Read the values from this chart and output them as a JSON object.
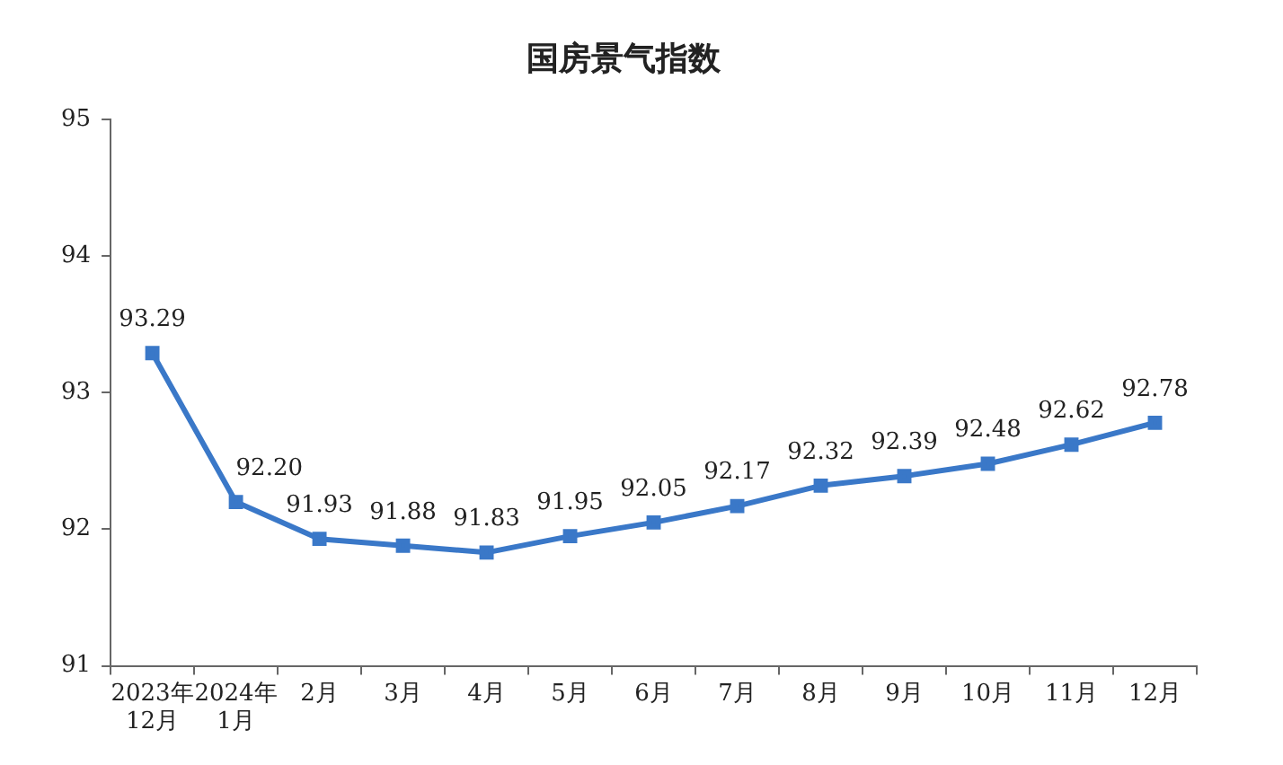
{
  "chart_data": {
    "type": "line",
    "title": "国房景气指数",
    "categories": [
      "2023年\n12月",
      "2024年\n1月",
      "2月",
      "3月",
      "4月",
      "5月",
      "6月",
      "7月",
      "8月",
      "9月",
      "10月",
      "11月",
      "12月"
    ],
    "series": [
      {
        "color": "#3a78c8",
        "values": [
          93.29,
          92.2,
          91.93,
          91.88,
          91.83,
          91.95,
          92.05,
          92.17,
          92.32,
          92.39,
          92.48,
          92.62,
          92.78
        ],
        "value_labels": [
          "93.29",
          "92.20",
          "91.93",
          "91.88",
          "91.83",
          "91.95",
          "92.05",
          "92.17",
          "92.32",
          "92.39",
          "92.48",
          "92.62",
          "92.78"
        ]
      }
    ],
    "ylim": [
      91,
      95
    ],
    "yticks": [
      91,
      92,
      93,
      94,
      95
    ],
    "grid": false,
    "legend": false,
    "marker": "square",
    "line_style": "solid"
  }
}
